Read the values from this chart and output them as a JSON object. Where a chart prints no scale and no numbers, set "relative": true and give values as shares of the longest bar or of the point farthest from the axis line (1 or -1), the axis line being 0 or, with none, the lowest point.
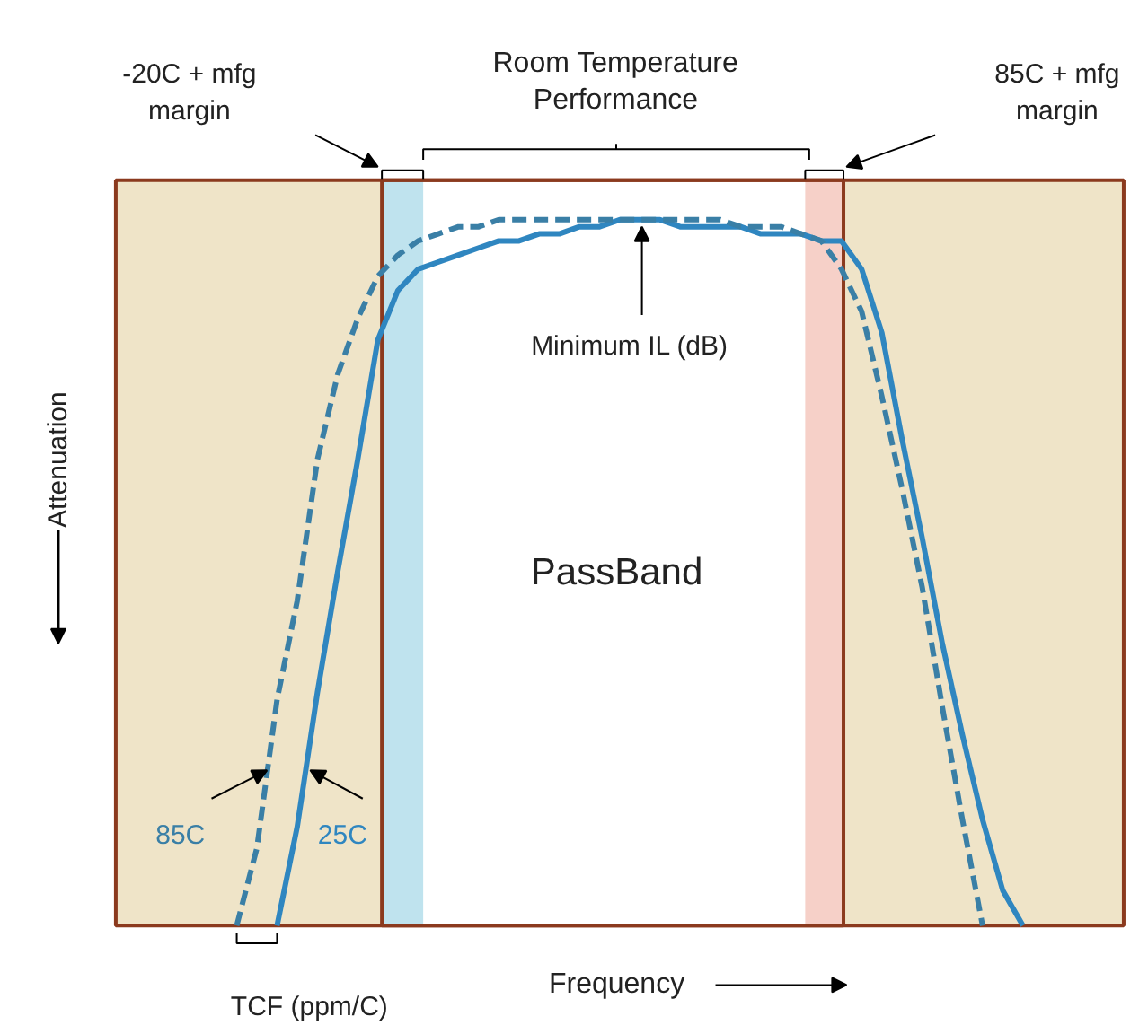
{
  "chart_data": {
    "type": "line",
    "relative": true,
    "xlabel": "Frequency",
    "ylabel": "Attenuation",
    "tick_labels": false,
    "grid": false,
    "categories": [
      null,
      null,
      null,
      null,
      null,
      null,
      null,
      null,
      null,
      null,
      null,
      null,
      null,
      null,
      null,
      null,
      null,
      null,
      null,
      null,
      null,
      null,
      null,
      null,
      null,
      null,
      null,
      null,
      null,
      null,
      null,
      null,
      null,
      null,
      null,
      null,
      null,
      null,
      null,
      null,
      null,
      null,
      null,
      null,
      null,
      null,
      null,
      null,
      null,
      null,
      null
    ],
    "series": [
      {
        "name": "25C",
        "color": "#2f86c0",
        "line_style": "solid",
        "values": [
          null,
          null,
          null,
          null,
          null,
          null,
          null,
          null,
          0,
          0.14,
          0.33,
          0.5,
          0.66,
          0.83,
          0.9,
          0.93,
          0.94,
          0.95,
          0.96,
          0.97,
          0.97,
          0.98,
          0.98,
          0.99,
          0.99,
          1.0,
          1.0,
          1.0,
          0.99,
          0.99,
          0.99,
          0.99,
          0.98,
          0.98,
          0.98,
          0.97,
          0.97,
          0.93,
          0.84,
          0.69,
          0.55,
          0.4,
          0.27,
          0.15,
          0.05,
          0,
          null,
          null,
          null,
          null,
          null
        ]
      },
      {
        "name": "85C",
        "color": "#3a7fa6",
        "line_style": "dashed",
        "values": [
          null,
          null,
          null,
          null,
          null,
          null,
          0,
          0.11,
          0.32,
          0.46,
          0.66,
          0.78,
          0.86,
          0.92,
          0.95,
          0.97,
          0.98,
          0.99,
          0.99,
          1.0,
          1.0,
          1.0,
          1.0,
          1.0,
          1.0,
          1.0,
          1.0,
          1.0,
          1.0,
          1.0,
          1.0,
          0.99,
          0.99,
          0.99,
          0.98,
          0.97,
          0.93,
          0.87,
          0.75,
          0.62,
          0.48,
          0.31,
          0.15,
          0,
          null,
          null,
          null,
          null,
          null,
          null,
          null
        ]
      }
    ],
    "annotations": [
      "Room Temperature\nPerformance",
      "-20C + mfg\nmargin",
      "85C + mfg\nmargin",
      "Minimum IL (dB)",
      "PassBand",
      "TCF (ppm/C)"
    ]
  }
}
